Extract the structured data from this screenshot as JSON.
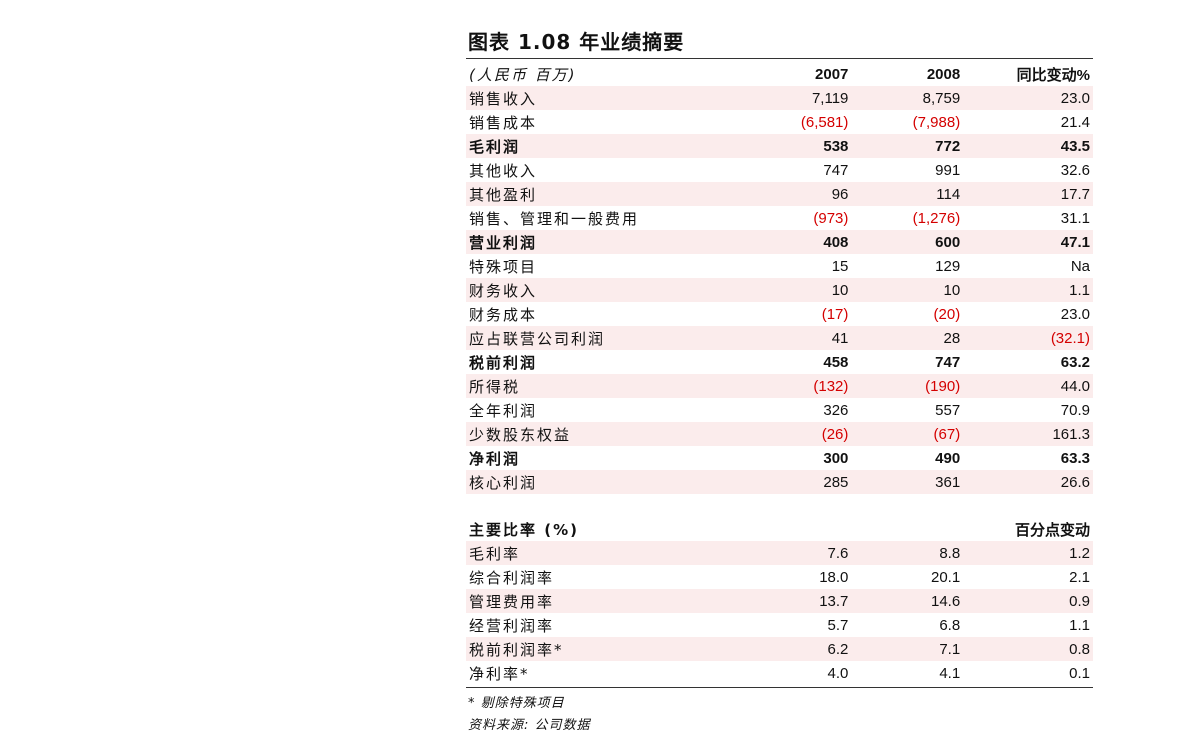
{
  "title": "图表 1.08 年业绩摘要",
  "summary": {
    "header": {
      "label": "(人民币 百万)",
      "col_a": "2007",
      "col_b": "2008",
      "col_c": "同比变动%"
    },
    "rows": [
      {
        "label": "销售收入",
        "a": "7,119",
        "b": "8,759",
        "c": "23.0",
        "bold": false,
        "shaded": true,
        "neg": []
      },
      {
        "label": "销售成本",
        "a": "(6,581)",
        "b": "(7,988)",
        "c": "21.4",
        "bold": false,
        "shaded": false,
        "neg": [
          "a",
          "b"
        ]
      },
      {
        "label": "毛利润",
        "a": "538",
        "b": "772",
        "c": "43.5",
        "bold": true,
        "shaded": true,
        "neg": []
      },
      {
        "label": "其他收入",
        "a": "747",
        "b": "991",
        "c": "32.6",
        "bold": false,
        "shaded": false,
        "neg": []
      },
      {
        "label": "其他盈利",
        "a": "96",
        "b": "114",
        "c": "17.7",
        "bold": false,
        "shaded": true,
        "neg": []
      },
      {
        "label": "销售、管理和一般费用",
        "a": "(973)",
        "b": "(1,276)",
        "c": "31.1",
        "bold": false,
        "shaded": false,
        "neg": [
          "a",
          "b"
        ]
      },
      {
        "label": "营业利润",
        "a": "408",
        "b": "600",
        "c": "47.1",
        "bold": true,
        "shaded": true,
        "neg": []
      },
      {
        "label": "特殊项目",
        "a": "15",
        "b": "129",
        "c": "Na",
        "bold": false,
        "shaded": false,
        "neg": []
      },
      {
        "label": "财务收入",
        "a": "10",
        "b": "10",
        "c": "1.1",
        "bold": false,
        "shaded": true,
        "neg": []
      },
      {
        "label": "财务成本",
        "a": "(17)",
        "b": "(20)",
        "c": "23.0",
        "bold": false,
        "shaded": false,
        "neg": [
          "a",
          "b"
        ]
      },
      {
        "label": "应占联营公司利润",
        "a": "41",
        "b": "28",
        "c": "(32.1)",
        "bold": false,
        "shaded": true,
        "neg": [
          "c"
        ]
      },
      {
        "label": "税前利润",
        "a": "458",
        "b": "747",
        "c": "63.2",
        "bold": true,
        "shaded": false,
        "neg": []
      },
      {
        "label": "所得税",
        "a": "(132)",
        "b": "(190)",
        "c": "44.0",
        "bold": false,
        "shaded": true,
        "neg": [
          "a",
          "b"
        ]
      },
      {
        "label": "全年利润",
        "a": "326",
        "b": "557",
        "c": "70.9",
        "bold": false,
        "shaded": false,
        "neg": []
      },
      {
        "label": "少数股东权益",
        "a": "(26)",
        "b": "(67)",
        "c": "161.3",
        "bold": false,
        "shaded": true,
        "neg": [
          "a",
          "b"
        ]
      },
      {
        "label": "净利润",
        "a": "300",
        "b": "490",
        "c": "63.3",
        "bold": true,
        "shaded": false,
        "neg": []
      },
      {
        "label": "核心利润",
        "a": "285",
        "b": "361",
        "c": "26.6",
        "bold": false,
        "shaded": true,
        "neg": []
      }
    ]
  },
  "ratios": {
    "header": {
      "label": "主要比率 (%)",
      "col_c": "百分点变动"
    },
    "rows": [
      {
        "label": "毛利率",
        "a": "7.6",
        "b": "8.8",
        "c": "1.2",
        "shaded": true
      },
      {
        "label": "综合利润率",
        "a": "18.0",
        "b": "20.1",
        "c": "2.1",
        "shaded": false
      },
      {
        "label": "管理费用率",
        "a": "13.7",
        "b": "14.6",
        "c": "0.9",
        "shaded": true
      },
      {
        "label": "经营利润率",
        "a": "5.7",
        "b": "6.8",
        "c": "1.1",
        "shaded": false
      },
      {
        "label": "税前利润率*",
        "a": "6.2",
        "b": "7.1",
        "c": "0.8",
        "shaded": true
      },
      {
        "label": "净利率*",
        "a": "4.0",
        "b": "4.1",
        "c": "0.1",
        "shaded": false
      }
    ]
  },
  "notes": {
    "footnote": "* 剔除特殊项目",
    "source": "资料来源: 公司数据"
  },
  "colors": {
    "negative": "#d40000",
    "shade": "#fbecec"
  }
}
